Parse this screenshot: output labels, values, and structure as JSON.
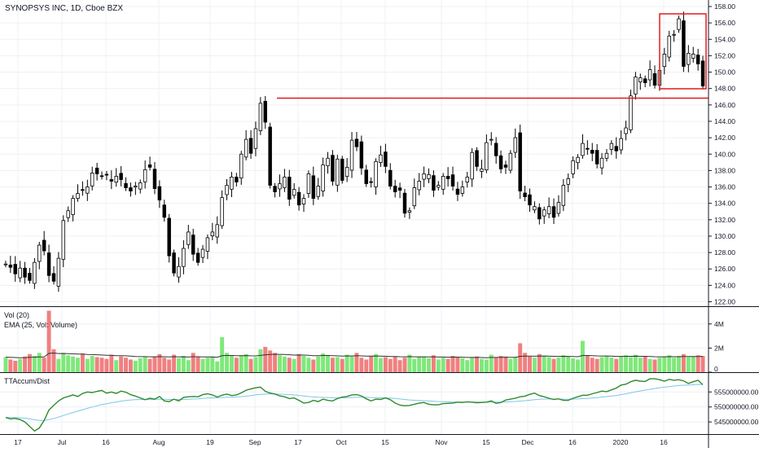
{
  "header": {
    "title": "SYNOPSYS INC, 1D, Cboe BZX"
  },
  "colors": {
    "up": "#2e2e2e",
    "down": "#000000",
    "vol_up": "#7fe87a",
    "vol_down": "#f08080",
    "ema": "#333333",
    "accum": "#2e8b2e",
    "accum_signal": "#7ec6e6",
    "annotation": "#e21b1b",
    "grid": "#eef0f3",
    "axis": "#131722"
  },
  "chart_data": [
    {
      "type": "candlestick",
      "title": "SYNOPSYS INC, 1D, Cboe BZX",
      "ylim": [
        122,
        158
      ],
      "yticks": [
        "158.00",
        "156.00",
        "154.00",
        "152.00",
        "150.00",
        "148.00",
        "146.00",
        "144.00",
        "142.00",
        "140.00",
        "138.00",
        "136.00",
        "134.00",
        "132.00",
        "130.00",
        "128.00",
        "126.00",
        "124.00",
        "122.00"
      ],
      "xticks": [
        "17",
        "Jul",
        "16",
        "Aug",
        "19",
        "Sep",
        "17",
        "Oct",
        "15",
        "Nov",
        "15",
        "Dec",
        "16",
        "2020",
        "16"
      ],
      "close": [
        126.6,
        126.2,
        125.4,
        126.1,
        125.0,
        124.6,
        126.8,
        128.9,
        128.2,
        125.2,
        124.5,
        127.3,
        131.9,
        133.1,
        134.6,
        135.2,
        135.6,
        136.0,
        137.7,
        137.6,
        137.3,
        137.5,
        136.7,
        137.3,
        136.9,
        135.9,
        135.5,
        136.1,
        136.5,
        138.1,
        138.4,
        135.8,
        134.4,
        132.3,
        127.6,
        125.5,
        126.3,
        128.5,
        130.5,
        127.8,
        126.8,
        128.4,
        129.8,
        130.5,
        131.4,
        134.7,
        136.2,
        137.2,
        136.6,
        140.0,
        141.8,
        140.1,
        143.1,
        146.2,
        143.9,
        136.2,
        135.4,
        136.4,
        137.2,
        134.5,
        135.7,
        133.8,
        134.6,
        137.6,
        134.6,
        136.1,
        138.7,
        139.5,
        136.7,
        139.4,
        136.8,
        138.4,
        141.7,
        140.9,
        138.3,
        136.4,
        136.6,
        139.1,
        139.9,
        138.5,
        136.1,
        135.4,
        135.6,
        132.8,
        133.1,
        135.9,
        136.7,
        137.6,
        137.5,
        135.6,
        136.2,
        137.3,
        137.0,
        136.1,
        135.1,
        136.0,
        137.2,
        140.2,
        138.5,
        138.2,
        141.4,
        141.8,
        139.8,
        138.2,
        138.4,
        140.1,
        142.0,
        135.5,
        134.8,
        133.8,
        133.6,
        132.1,
        133.2,
        133.6,
        132.3,
        134.1,
        136.2,
        137.0,
        139.2,
        139.6,
        141.3,
        140.6,
        140.1,
        138.8,
        139.5,
        140.1,
        141.3,
        140.4,
        141.9,
        143.2,
        147.1,
        149.4,
        149.3,
        148.7,
        150.3,
        148.4,
        150.2,
        152.2,
        154.4,
        154.6,
        156.5,
        150.7,
        152.3,
        152.2,
        151.0,
        148.3
      ],
      "volume": [
        1.25,
        1.05,
        0.95,
        1.1,
        1.3,
        1.5,
        1.35,
        1.6,
        1.2,
        5.1,
        1.9,
        1.1,
        1.6,
        1.4,
        1.3,
        1.2,
        1.55,
        1.1,
        1.35,
        1.25,
        1.2,
        1.1,
        1.45,
        1.0,
        1.3,
        1.2,
        1.05,
        0.95,
        1.15,
        1.25,
        1.1,
        1.3,
        1.5,
        1.2,
        1.05,
        1.45,
        1.15,
        1.35,
        1.0,
        1.6,
        1.25,
        1.1,
        1.2,
        1.3,
        0.9,
        2.9,
        1.6,
        1.4,
        1.2,
        1.35,
        1.5,
        1.1,
        1.25,
        1.9,
        2.1,
        1.8,
        1.6,
        1.4,
        1.3,
        1.2,
        1.1,
        1.5,
        1.35,
        1.2,
        1.05,
        1.3,
        1.55,
        1.4,
        1.2,
        1.25,
        1.1,
        1.45,
        1.3,
        1.6,
        1.2,
        1.05,
        1.35,
        1.5,
        1.15,
        1.25,
        1.1,
        1.3,
        1.0,
        1.2,
        1.45,
        1.1,
        1.3,
        1.25,
        1.15,
        1.4,
        1.05,
        1.2,
        1.1,
        1.35,
        1.25,
        1.15,
        1.0,
        1.2,
        1.3,
        1.1,
        1.05,
        1.45,
        1.2,
        1.35,
        1.3,
        1.1,
        1.25,
        2.4,
        1.6,
        1.3,
        1.2,
        1.5,
        1.35,
        1.25,
        1.1,
        1.2,
        1.4,
        1.3,
        1.15,
        1.05,
        2.6,
        1.4,
        1.2,
        1.1,
        1.25,
        1.35,
        1.2,
        1.1,
        1.3,
        1.4,
        1.25,
        1.45,
        1.2,
        1.35,
        1.1,
        1.05,
        1.2,
        1.3,
        1.4,
        1.2,
        1.35,
        1.5,
        1.25,
        1.3,
        1.4,
        1.35
      ],
      "tt_accum": [
        546.5,
        546.0,
        546.2,
        545.8,
        545.0,
        543.5,
        542.0,
        543.0,
        545.5,
        549.0,
        550.5,
        552.0,
        553.0,
        553.5,
        554.0,
        553.5,
        554.5,
        555.0,
        554.8,
        555.2,
        555.5,
        554.6,
        555.0,
        554.5,
        555.3,
        554.9,
        554.1,
        553.6,
        553.0,
        552.4,
        552.9,
        552.6,
        553.5,
        552.0,
        551.8,
        552.6,
        552.0,
        553.2,
        553.4,
        553.5,
        553.4,
        554.1,
        554.4,
        554.0,
        553.3,
        553.9,
        554.3,
        553.8,
        554.0,
        554.7,
        555.6,
        556.0,
        556.4,
        556.6,
        555.2,
        554.6,
        554.3,
        553.7,
        553.4,
        552.8,
        553.0,
        552.2,
        551.3,
        551.5,
        552.2,
        551.8,
        552.6,
        552.2,
        552.0,
        552.8,
        553.3,
        553.5,
        554.0,
        554.1,
        553.7,
        552.7,
        552.0,
        552.6,
        552.5,
        553.0,
        552.4,
        551.3,
        550.6,
        550.4,
        550.5,
        550.9,
        551.3,
        551.5,
        550.9,
        550.7,
        550.7,
        551.1,
        551.2,
        551.3,
        551.6,
        551.5,
        551.7,
        551.6,
        551.4,
        551.5,
        551.6,
        552.0,
        551.2,
        551.5,
        552.3,
        552.6,
        552.9,
        553.4,
        553.6,
        554.2,
        554.6,
        553.8,
        553.4,
        552.9,
        552.5,
        552.7,
        552.2,
        552.2,
        552.9,
        553.4,
        553.9,
        553.9,
        554.4,
        554.8,
        555.3,
        555.1,
        555.7,
        556.3,
        557.3,
        557.6,
        558.4,
        558.9,
        558.6,
        558.5,
        559.4,
        559.4,
        559.1,
        558.6,
        559.2,
        558.9,
        559.1,
        558.7,
        557.8,
        558.4,
        558.9,
        557.4
      ],
      "volume_pane": {
        "label1": "Vol (20)",
        "label2": "EMA (25, Vol: Volume)",
        "yticks": [
          "4M",
          "2M",
          "0"
        ],
        "ylim": [
          0,
          5.2
        ]
      },
      "accum_pane": {
        "label": "TTAccum/Dist",
        "yticks": [
          "555000000.00",
          "550000000.00",
          "545000000.00"
        ],
        "ylim": [
          541.5,
          560.5
        ]
      }
    }
  ]
}
